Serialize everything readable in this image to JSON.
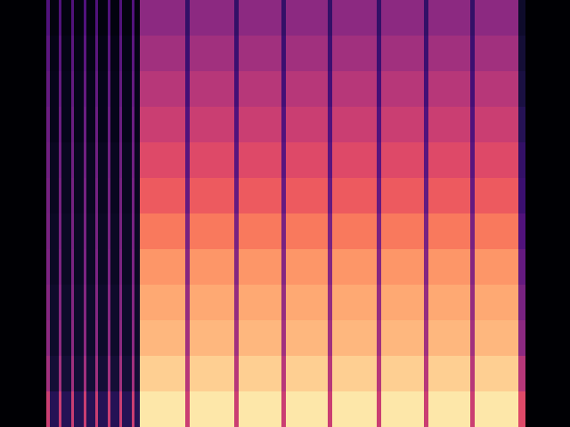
{
  "chart_data": {
    "type": "heatmap",
    "tick_labels": false,
    "xlim": [
      0,
      640
    ],
    "ylim": [
      0,
      12
    ],
    "color_range": [
      0,
      1
    ],
    "x_edges": [
      0,
      52,
      56,
      66,
      69,
      80,
      83,
      94,
      97,
      107,
      110,
      121,
      124,
      134,
      137,
      148,
      151,
      157,
      208,
      213,
      263,
      268,
      316,
      321,
      368,
      373,
      423,
      428,
      476,
      481,
      528,
      533,
      582,
      590,
      640
    ],
    "y_edges": [
      0,
      1,
      2,
      3,
      4,
      5,
      6,
      7,
      8,
      9,
      10,
      11,
      12
    ],
    "cells": [
      [
        0,
        0.55,
        0.15,
        0.55,
        0.15,
        0.55,
        0.15,
        0.55,
        0.15,
        0.55,
        0.15,
        0.55,
        0.15,
        0.55,
        0.15,
        0.55,
        0.15,
        0.95,
        0.55,
        0.95,
        0.55,
        0.95,
        0.55,
        0.95,
        0.55,
        0.95,
        0.55,
        0.95,
        0.55,
        0.95,
        0.55,
        0.95,
        0.6,
        0
      ],
      [
        0,
        0.45,
        0.1,
        0.45,
        0.1,
        0.45,
        0.1,
        0.45,
        0.1,
        0.45,
        0.1,
        0.45,
        0.1,
        0.45,
        0.1,
        0.45,
        0.1,
        0.9,
        0.5,
        0.9,
        0.5,
        0.9,
        0.5,
        0.9,
        0.5,
        0.9,
        0.5,
        0.9,
        0.5,
        0.9,
        0.5,
        0.9,
        0.5,
        0
      ],
      [
        0,
        0.4,
        0.08,
        0.4,
        0.08,
        0.4,
        0.08,
        0.4,
        0.08,
        0.4,
        0.08,
        0.4,
        0.08,
        0.4,
        0.08,
        0.4,
        0.08,
        0.85,
        0.45,
        0.85,
        0.45,
        0.85,
        0.45,
        0.85,
        0.45,
        0.85,
        0.45,
        0.85,
        0.45,
        0.85,
        0.45,
        0.85,
        0.4,
        0
      ],
      [
        0,
        0.38,
        0.08,
        0.38,
        0.08,
        0.38,
        0.08,
        0.38,
        0.08,
        0.38,
        0.08,
        0.38,
        0.08,
        0.38,
        0.08,
        0.38,
        0.08,
        0.82,
        0.42,
        0.82,
        0.42,
        0.82,
        0.42,
        0.82,
        0.42,
        0.82,
        0.42,
        0.82,
        0.42,
        0.82,
        0.42,
        0.82,
        0.35,
        0
      ],
      [
        0,
        0.36,
        0.07,
        0.36,
        0.07,
        0.36,
        0.07,
        0.36,
        0.07,
        0.36,
        0.07,
        0.36,
        0.07,
        0.36,
        0.07,
        0.36,
        0.07,
        0.78,
        0.38,
        0.78,
        0.38,
        0.78,
        0.38,
        0.78,
        0.38,
        0.78,
        0.38,
        0.78,
        0.38,
        0.78,
        0.38,
        0.78,
        0.3,
        0
      ],
      [
        0,
        0.35,
        0.07,
        0.35,
        0.07,
        0.35,
        0.07,
        0.35,
        0.07,
        0.35,
        0.07,
        0.35,
        0.07,
        0.35,
        0.07,
        0.35,
        0.07,
        0.72,
        0.35,
        0.72,
        0.35,
        0.72,
        0.35,
        0.72,
        0.35,
        0.72,
        0.35,
        0.72,
        0.35,
        0.72,
        0.35,
        0.72,
        0.25,
        0
      ],
      [
        0,
        0.34,
        0.06,
        0.34,
        0.06,
        0.34,
        0.06,
        0.34,
        0.06,
        0.34,
        0.06,
        0.34,
        0.06,
        0.34,
        0.06,
        0.34,
        0.06,
        0.65,
        0.3,
        0.65,
        0.3,
        0.65,
        0.3,
        0.65,
        0.3,
        0.65,
        0.3,
        0.65,
        0.3,
        0.65,
        0.3,
        0.65,
        0.2,
        0
      ],
      [
        0,
        0.33,
        0.06,
        0.33,
        0.06,
        0.33,
        0.06,
        0.33,
        0.06,
        0.33,
        0.06,
        0.33,
        0.06,
        0.33,
        0.06,
        0.33,
        0.06,
        0.6,
        0.27,
        0.6,
        0.27,
        0.6,
        0.27,
        0.6,
        0.27,
        0.6,
        0.27,
        0.6,
        0.27,
        0.6,
        0.27,
        0.6,
        0.18,
        0
      ],
      [
        0,
        0.32,
        0.05,
        0.32,
        0.05,
        0.32,
        0.05,
        0.32,
        0.05,
        0.32,
        0.05,
        0.32,
        0.05,
        0.32,
        0.05,
        0.32,
        0.05,
        0.55,
        0.25,
        0.55,
        0.25,
        0.55,
        0.25,
        0.55,
        0.25,
        0.55,
        0.25,
        0.55,
        0.25,
        0.55,
        0.25,
        0.55,
        0.15,
        0
      ],
      [
        0,
        0.3,
        0.05,
        0.3,
        0.05,
        0.3,
        0.05,
        0.3,
        0.05,
        0.3,
        0.05,
        0.3,
        0.05,
        0.3,
        0.05,
        0.3,
        0.05,
        0.5,
        0.22,
        0.5,
        0.22,
        0.5,
        0.22,
        0.5,
        0.22,
        0.5,
        0.22,
        0.5,
        0.22,
        0.5,
        0.22,
        0.5,
        0.12,
        0
      ],
      [
        0,
        0.28,
        0.04,
        0.28,
        0.04,
        0.28,
        0.04,
        0.28,
        0.04,
        0.28,
        0.04,
        0.28,
        0.04,
        0.28,
        0.04,
        0.28,
        0.04,
        0.45,
        0.2,
        0.45,
        0.2,
        0.45,
        0.2,
        0.45,
        0.2,
        0.45,
        0.2,
        0.45,
        0.2,
        0.45,
        0.2,
        0.45,
        0.1,
        0
      ],
      [
        0,
        0.25,
        0.03,
        0.25,
        0.03,
        0.25,
        0.03,
        0.25,
        0.03,
        0.25,
        0.03,
        0.25,
        0.03,
        0.25,
        0.03,
        0.25,
        0.03,
        0.4,
        0.18,
        0.4,
        0.18,
        0.4,
        0.18,
        0.4,
        0.18,
        0.4,
        0.18,
        0.4,
        0.18,
        0.4,
        0.18,
        0.4,
        0.08,
        0
      ]
    ]
  }
}
